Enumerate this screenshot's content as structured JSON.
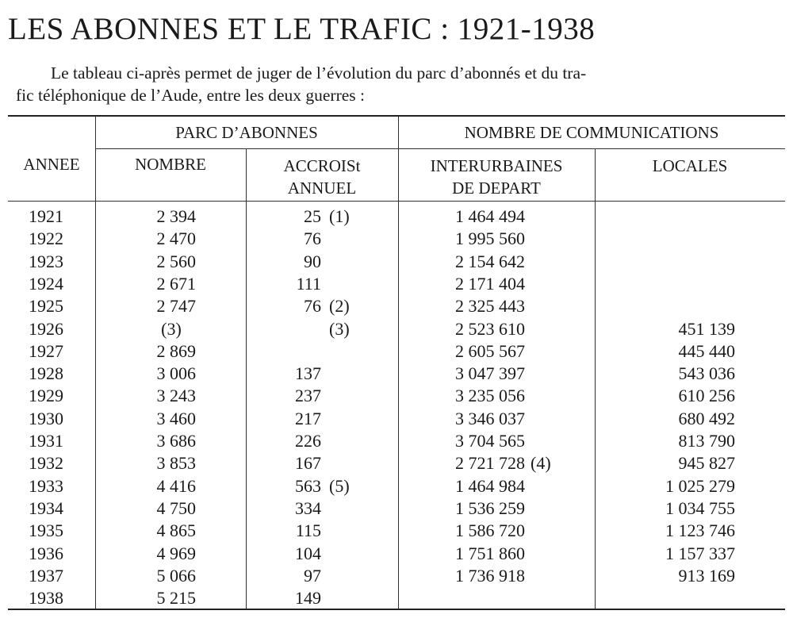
{
  "title": "LES ABONNES ET LE TRAFIC : 1921-1938",
  "intro": {
    "line1": "Le tableau ci-après permet de juger de l’évolution du parc d’abonnés et du tra-",
    "line2": "fic téléphonique de l’Aude, entre les deux guerres :"
  },
  "table": {
    "headers": {
      "year": "ANNEE",
      "group1": "PARC D’ABONNES",
      "group2": "NOMBRE DE COMMUNICATIONS",
      "count": "NOMBRE",
      "growth_l1": "ACCROISt",
      "growth_l2": "ANNUEL",
      "intercity_l1": "INTERURBAINES",
      "intercity_l2": "DE DEPART",
      "local": "LOCALES"
    },
    "rows": [
      {
        "year": "1921",
        "count": "2 394",
        "growth": "25",
        "growth_note": "(1)",
        "intercity": "1 464 494",
        "intercity_note": "",
        "local": ""
      },
      {
        "year": "1922",
        "count": "2 470",
        "growth": "76",
        "growth_note": "",
        "intercity": "1 995 560",
        "intercity_note": "",
        "local": ""
      },
      {
        "year": "1923",
        "count": "2 560",
        "growth": "90",
        "growth_note": "",
        "intercity": "2 154 642",
        "intercity_note": "",
        "local": ""
      },
      {
        "year": "1924",
        "count": "2 671",
        "growth": "111",
        "growth_note": "",
        "intercity": "2 171 404",
        "intercity_note": "",
        "local": ""
      },
      {
        "year": "1925",
        "count": "2 747",
        "growth": "76",
        "growth_note": "(2)",
        "intercity": "2 325 443",
        "intercity_note": "",
        "local": ""
      },
      {
        "year": "1926",
        "count": "(3)",
        "growth": "",
        "growth_note": "(3)",
        "intercity": "2 523 610",
        "intercity_note": "",
        "local": "451 139"
      },
      {
        "year": "1927",
        "count": "2 869",
        "growth": "",
        "growth_note": "",
        "intercity": "2 605 567",
        "intercity_note": "",
        "local": "445 440"
      },
      {
        "year": "1928",
        "count": "3 006",
        "growth": "137",
        "growth_note": "",
        "intercity": "3 047 397",
        "intercity_note": "",
        "local": "543 036"
      },
      {
        "year": "1929",
        "count": "3 243",
        "growth": "237",
        "growth_note": "",
        "intercity": "3 235 056",
        "intercity_note": "",
        "local": "610 256"
      },
      {
        "year": "1930",
        "count": "3 460",
        "growth": "217",
        "growth_note": "",
        "intercity": "3 346 037",
        "intercity_note": "",
        "local": "680 492"
      },
      {
        "year": "1931",
        "count": "3 686",
        "growth": "226",
        "growth_note": "",
        "intercity": "3 704 565",
        "intercity_note": "",
        "local": "813 790"
      },
      {
        "year": "1932",
        "count": "3 853",
        "growth": "167",
        "growth_note": "",
        "intercity": "2 721 728",
        "intercity_note": "(4)",
        "local": "945 827"
      },
      {
        "year": "1933",
        "count": "4 416",
        "growth": "563",
        "growth_note": "(5)",
        "intercity": "1 464 984",
        "intercity_note": "",
        "local": "1 025 279"
      },
      {
        "year": "1934",
        "count": "4 750",
        "growth": "334",
        "growth_note": "",
        "intercity": "1 536 259",
        "intercity_note": "",
        "local": "1 034 755"
      },
      {
        "year": "1935",
        "count": "4 865",
        "growth": "115",
        "growth_note": "",
        "intercity": "1 586 720",
        "intercity_note": "",
        "local": "1 123 746"
      },
      {
        "year": "1936",
        "count": "4 969",
        "growth": "104",
        "growth_note": "",
        "intercity": "1 751 860",
        "intercity_note": "",
        "local": "1 157 337"
      },
      {
        "year": "1937",
        "count": "5 066",
        "growth": "97",
        "growth_note": "",
        "intercity": "1 736 918",
        "intercity_note": "",
        "local": "913 169"
      },
      {
        "year": "1938",
        "count": "5 215",
        "growth": "149",
        "growth_note": "",
        "intercity": "",
        "intercity_note": "",
        "local": ""
      }
    ]
  }
}
